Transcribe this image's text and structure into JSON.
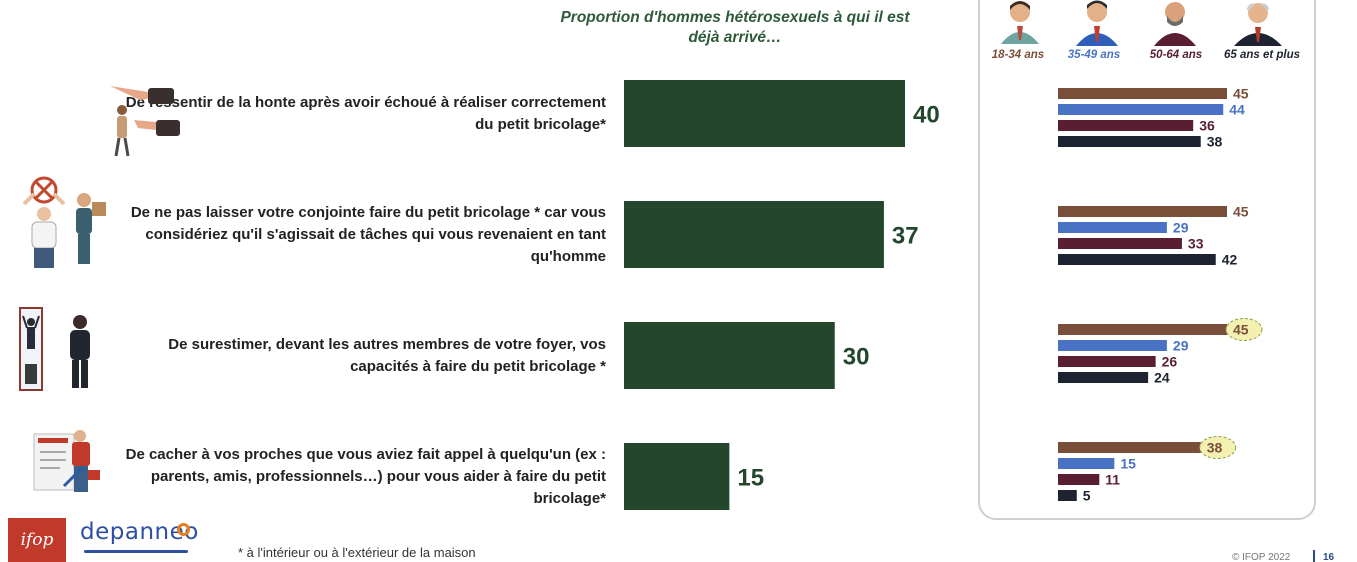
{
  "title": "Proportion d'hommes hétérosexuels à qui il est déjà arrivé…",
  "footnote": "* à l'intérieur ou à l'extérieur de la maison",
  "copyright": "© IFOP 2022",
  "page_number": "16",
  "logos": {
    "ifop": "ifop",
    "depanneo": "depanneo"
  },
  "colors": {
    "main_bar": "#23462d",
    "g1": "#7a4f3a",
    "g2": "#4a72c4",
    "g3": "#5a1e32",
    "g4": "#1d2330",
    "highlight": "#f4f0b0"
  },
  "groups": [
    {
      "label": "18-34 ans",
      "color": "#7a4f3a"
    },
    {
      "label": "35-49 ans",
      "color": "#4a72c4"
    },
    {
      "label": "50-64 ans",
      "color": "#5a1e32"
    },
    {
      "label": "65 ans et plus",
      "color": "#1d2330"
    }
  ],
  "rows": [
    {
      "label": "De ressentir de la honte après avoir échoué à réaliser correctement du petit bricolage*",
      "icon": "pointing-hands-icon"
    },
    {
      "label": "De ne pas laisser votre conjointe faire du petit bricolage * car vous considériez qu'il s'agissait de tâches qui vous revenaient en tant qu'homme",
      "icon": "man-stop-sign-woman-icon"
    },
    {
      "label": "De surestimer, devant les autres membres de votre foyer, vos capacités à faire du petit bricolage *",
      "icon": "man-mirror-hero-icon"
    },
    {
      "label": "De cacher à vos proches que vous aviez fait appel à quelqu'un (ex : parents, amis, professionnels…) pour vous aider à faire du petit bricolage*",
      "icon": "contract-repairman-icon"
    }
  ],
  "chart_data": [
    {
      "type": "bar",
      "orientation": "horizontal",
      "categories": [
        "De ressentir de la honte après avoir échoué à réaliser correctement du petit bricolage*",
        "De ne pas laisser votre conjointe faire du petit bricolage * car vous considériez qu'il s'agissait de tâches qui vous revenaient en tant qu'homme",
        "De surestimer, devant les autres membres de votre foyer, vos capacités à faire du petit bricolage *",
        "De cacher à vos proches que vous aviez fait appel à quelqu'un (ex : parents, amis, professionnels…) pour vous aider à faire du petit bricolage*"
      ],
      "values": [
        40,
        37,
        30,
        15
      ],
      "xlim": [
        0,
        50
      ]
    },
    {
      "type": "bar",
      "orientation": "horizontal",
      "categories": [
        "row1",
        "row2",
        "row3",
        "row4"
      ],
      "series": [
        {
          "name": "18-34 ans",
          "values": [
            45,
            45,
            45,
            38
          ]
        },
        {
          "name": "35-49 ans",
          "values": [
            44,
            29,
            29,
            15
          ]
        },
        {
          "name": "50-64 ans",
          "values": [
            36,
            33,
            26,
            11
          ]
        },
        {
          "name": "65 ans et plus",
          "values": [
            38,
            42,
            24,
            5
          ]
        }
      ],
      "highlighted": [
        {
          "row": 2,
          "series": 0
        },
        {
          "row": 3,
          "series": 0
        }
      ],
      "xlim": [
        0,
        50
      ]
    }
  ]
}
